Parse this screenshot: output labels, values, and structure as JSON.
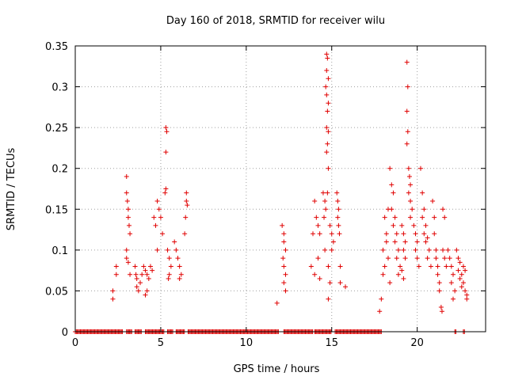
{
  "chart_data": {
    "type": "scatter",
    "title": "Day 160 of 2018, SRMTID for receiver wilu",
    "xlabel": "GPS time / hours",
    "ylabel": "SRMTID / TECUs",
    "xlim": [
      0,
      24
    ],
    "ylim": [
      0,
      0.35
    ],
    "xticks": [
      0,
      5,
      10,
      15,
      20
    ],
    "xtick_labels": [
      "0",
      "5",
      "10",
      "15",
      "20"
    ],
    "yticks": [
      0,
      0.05,
      0.1,
      0.15,
      0.2,
      0.25,
      0.3,
      0.35
    ],
    "ytick_labels": [
      "0",
      "0.05",
      "0.1",
      "0.15",
      "0.2",
      "0.25",
      "0.3",
      "0.35"
    ],
    "grid": true,
    "marker": "+",
    "series": [
      {
        "name": "SRMTID",
        "color": "#e00000",
        "points": [
          [
            2.2,
            0.05
          ],
          [
            2.2,
            0.04
          ],
          [
            2.4,
            0.08
          ],
          [
            2.4,
            0.07
          ],
          [
            3.0,
            0.19
          ],
          [
            3.0,
            0.17
          ],
          [
            3.05,
            0.16
          ],
          [
            3.1,
            0.15
          ],
          [
            3.1,
            0.14
          ],
          [
            3.15,
            0.13
          ],
          [
            3.2,
            0.12
          ],
          [
            3.0,
            0.1
          ],
          [
            3.0,
            0.09
          ],
          [
            3.1,
            0.085
          ],
          [
            3.2,
            0.07
          ],
          [
            3.5,
            0.08
          ],
          [
            3.55,
            0.07
          ],
          [
            3.6,
            0.065
          ],
          [
            3.6,
            0.055
          ],
          [
            3.7,
            0.05
          ],
          [
            3.8,
            0.06
          ],
          [
            3.9,
            0.07
          ],
          [
            4.0,
            0.08
          ],
          [
            4.1,
            0.075
          ],
          [
            4.2,
            0.07
          ],
          [
            4.3,
            0.065
          ],
          [
            4.2,
            0.05
          ],
          [
            4.1,
            0.045
          ],
          [
            4.4,
            0.08
          ],
          [
            4.5,
            0.075
          ],
          [
            4.6,
            0.14
          ],
          [
            4.7,
            0.13
          ],
          [
            4.8,
            0.16
          ],
          [
            4.9,
            0.15
          ],
          [
            5.0,
            0.14
          ],
          [
            5.1,
            0.12
          ],
          [
            4.8,
            0.1
          ],
          [
            5.3,
            0.25
          ],
          [
            5.35,
            0.245
          ],
          [
            5.3,
            0.22
          ],
          [
            5.3,
            0.175
          ],
          [
            5.25,
            0.17
          ],
          [
            5.4,
            0.1
          ],
          [
            5.5,
            0.09
          ],
          [
            5.6,
            0.08
          ],
          [
            5.5,
            0.07
          ],
          [
            5.45,
            0.065
          ],
          [
            5.8,
            0.11
          ],
          [
            5.9,
            0.1
          ],
          [
            6.0,
            0.09
          ],
          [
            6.1,
            0.08
          ],
          [
            6.2,
            0.07
          ],
          [
            6.1,
            0.065
          ],
          [
            6.5,
            0.17
          ],
          [
            6.5,
            0.16
          ],
          [
            6.55,
            0.155
          ],
          [
            6.45,
            0.14
          ],
          [
            6.4,
            0.12
          ],
          [
            11.8,
            0.035
          ],
          [
            12.1,
            0.13
          ],
          [
            12.2,
            0.12
          ],
          [
            12.2,
            0.11
          ],
          [
            12.3,
            0.1
          ],
          [
            12.15,
            0.09
          ],
          [
            12.2,
            0.08
          ],
          [
            12.3,
            0.07
          ],
          [
            12.2,
            0.06
          ],
          [
            12.3,
            0.05
          ],
          [
            13.8,
            0.08
          ],
          [
            13.9,
            0.12
          ],
          [
            14.0,
            0.16
          ],
          [
            14.1,
            0.14
          ],
          [
            14.2,
            0.13
          ],
          [
            14.3,
            0.12
          ],
          [
            14.0,
            0.07
          ],
          [
            14.2,
            0.09
          ],
          [
            14.3,
            0.065
          ],
          [
            14.5,
            0.17
          ],
          [
            14.6,
            0.16
          ],
          [
            14.65,
            0.15
          ],
          [
            14.55,
            0.14
          ],
          [
            14.6,
            0.1
          ],
          [
            14.7,
            0.34
          ],
          [
            14.75,
            0.335
          ],
          [
            14.7,
            0.32
          ],
          [
            14.8,
            0.31
          ],
          [
            14.65,
            0.3
          ],
          [
            14.7,
            0.29
          ],
          [
            14.8,
            0.28
          ],
          [
            14.75,
            0.27
          ],
          [
            14.7,
            0.25
          ],
          [
            14.8,
            0.245
          ],
          [
            14.75,
            0.23
          ],
          [
            14.7,
            0.22
          ],
          [
            14.8,
            0.2
          ],
          [
            14.75,
            0.17
          ],
          [
            14.9,
            0.13
          ],
          [
            15.0,
            0.12
          ],
          [
            15.1,
            0.11
          ],
          [
            15.0,
            0.1
          ],
          [
            14.8,
            0.08
          ],
          [
            14.9,
            0.06
          ],
          [
            14.8,
            0.04
          ],
          [
            15.3,
            0.17
          ],
          [
            15.35,
            0.16
          ],
          [
            15.4,
            0.15
          ],
          [
            15.35,
            0.14
          ],
          [
            15.4,
            0.13
          ],
          [
            15.45,
            0.12
          ],
          [
            15.5,
            0.08
          ],
          [
            15.5,
            0.06
          ],
          [
            15.8,
            0.055
          ],
          [
            17.8,
            0.025
          ],
          [
            17.9,
            0.04
          ],
          [
            18.0,
            0.07
          ],
          [
            18.1,
            0.08
          ],
          [
            18.0,
            0.1
          ],
          [
            18.2,
            0.12
          ],
          [
            18.1,
            0.14
          ],
          [
            18.3,
            0.15
          ],
          [
            18.2,
            0.11
          ],
          [
            18.3,
            0.09
          ],
          [
            18.4,
            0.06
          ],
          [
            18.4,
            0.2
          ],
          [
            18.5,
            0.18
          ],
          [
            18.6,
            0.17
          ],
          [
            18.5,
            0.15
          ],
          [
            18.7,
            0.14
          ],
          [
            18.6,
            0.13
          ],
          [
            18.8,
            0.12
          ],
          [
            18.7,
            0.11
          ],
          [
            18.9,
            0.1
          ],
          [
            18.8,
            0.09
          ],
          [
            19.0,
            0.08
          ],
          [
            18.9,
            0.07
          ],
          [
            19.1,
            0.13
          ],
          [
            19.2,
            0.12
          ],
          [
            19.3,
            0.11
          ],
          [
            19.2,
            0.1
          ],
          [
            19.3,
            0.09
          ],
          [
            19.1,
            0.075
          ],
          [
            19.2,
            0.065
          ],
          [
            19.4,
            0.33
          ],
          [
            19.45,
            0.3
          ],
          [
            19.4,
            0.27
          ],
          [
            19.45,
            0.245
          ],
          [
            19.4,
            0.23
          ],
          [
            19.5,
            0.2
          ],
          [
            19.55,
            0.19
          ],
          [
            19.6,
            0.18
          ],
          [
            19.5,
            0.17
          ],
          [
            19.6,
            0.16
          ],
          [
            19.7,
            0.15
          ],
          [
            19.6,
            0.14
          ],
          [
            19.8,
            0.13
          ],
          [
            19.9,
            0.12
          ],
          [
            20.0,
            0.11
          ],
          [
            19.9,
            0.1
          ],
          [
            20.0,
            0.09
          ],
          [
            20.1,
            0.08
          ],
          [
            20.2,
            0.2
          ],
          [
            20.3,
            0.17
          ],
          [
            20.4,
            0.15
          ],
          [
            20.3,
            0.14
          ],
          [
            20.5,
            0.13
          ],
          [
            20.4,
            0.12
          ],
          [
            20.6,
            0.115
          ],
          [
            20.5,
            0.11
          ],
          [
            20.7,
            0.1
          ],
          [
            20.6,
            0.09
          ],
          [
            20.8,
            0.08
          ],
          [
            20.9,
            0.16
          ],
          [
            21.0,
            0.14
          ],
          [
            21.0,
            0.12
          ],
          [
            21.1,
            0.1
          ],
          [
            21.1,
            0.09
          ],
          [
            21.2,
            0.08
          ],
          [
            21.2,
            0.07
          ],
          [
            21.3,
            0.06
          ],
          [
            21.3,
            0.05
          ],
          [
            21.4,
            0.03
          ],
          [
            21.45,
            0.025
          ],
          [
            21.5,
            0.15
          ],
          [
            21.6,
            0.14
          ],
          [
            21.5,
            0.1
          ],
          [
            21.6,
            0.09
          ],
          [
            21.7,
            0.08
          ],
          [
            21.8,
            0.1
          ],
          [
            21.9,
            0.09
          ],
          [
            22.0,
            0.08
          ],
          [
            22.1,
            0.07
          ],
          [
            22.0,
            0.06
          ],
          [
            22.2,
            0.05
          ],
          [
            22.1,
            0.04
          ],
          [
            22.3,
            0.1
          ],
          [
            22.4,
            0.09
          ],
          [
            22.5,
            0.085
          ],
          [
            22.4,
            0.075
          ],
          [
            22.6,
            0.07
          ],
          [
            22.5,
            0.065
          ],
          [
            22.6,
            0.055
          ],
          [
            22.7,
            0.08
          ],
          [
            22.8,
            0.075
          ],
          [
            22.7,
            0.06
          ],
          [
            22.8,
            0.05
          ],
          [
            22.9,
            0.045
          ],
          [
            22.9,
            0.04
          ]
        ],
        "zero_ranges": [
          [
            0.0,
            2.8
          ],
          [
            3.0,
            3.3
          ],
          [
            3.5,
            3.9
          ],
          [
            4.1,
            5.2
          ],
          [
            5.4,
            5.7
          ],
          [
            5.9,
            6.4
          ],
          [
            6.6,
            11.9
          ],
          [
            12.2,
            13.9
          ],
          [
            14.0,
            15.0
          ],
          [
            15.2,
            17.9
          ],
          [
            22.2,
            22.3
          ],
          [
            22.7,
            22.8
          ]
        ]
      }
    ]
  }
}
